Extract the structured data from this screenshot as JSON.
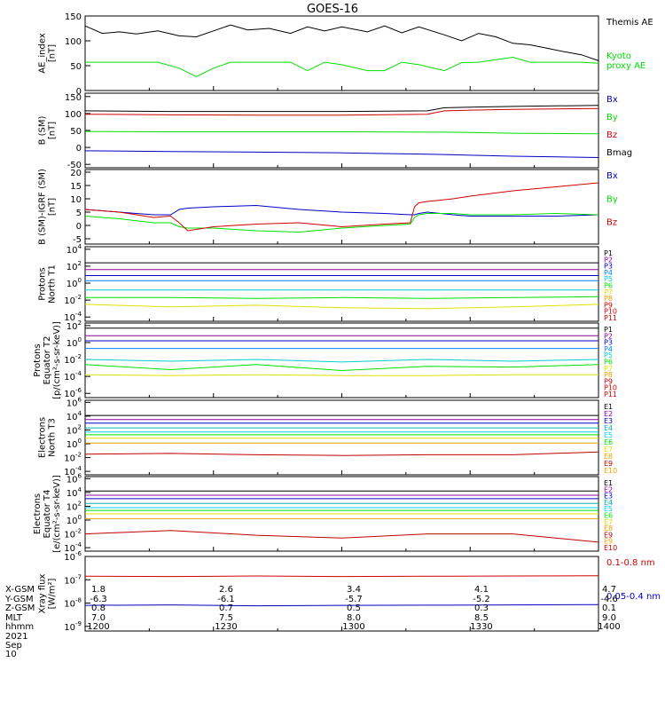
{
  "title": "GOES-16",
  "colors": {
    "black": "#000000",
    "green": "#00e000",
    "blue": "#0000c8",
    "red": "#d00000",
    "cyan": "#00d0d0",
    "orange": "#f0a000",
    "yellow": "#e0e000",
    "purple": "#9000a0",
    "teal": "#00b0b0",
    "lime": "#00e000",
    "darkred": "#c00000"
  },
  "ephemeris": {
    "labels": [
      "X-GSM",
      "Y-GSM",
      "Z-GSM",
      "MLT",
      "hhmm"
    ],
    "columns": [
      [
        "1.8",
        "-6.3",
        "0.8",
        "7.0",
        "1200"
      ],
      [
        "2.6",
        "-6.1",
        "0.7",
        "7.5",
        "1230"
      ],
      [
        "3.4",
        "-5.7",
        "0.5",
        "8.0",
        "1300"
      ],
      [
        "4.1",
        "-5.2",
        "0.3",
        "8.5",
        "1330"
      ],
      [
        "4.7",
        "-4.6",
        "0.1",
        "9.0",
        "1400"
      ]
    ],
    "date": "2021 Sep 10"
  },
  "chart_data": [
    {
      "type": "line",
      "scale": "linear",
      "ylabel": "AE_index\n[nT]",
      "yticks": [
        "150",
        "100",
        "50",
        "0"
      ],
      "ytick_values": [
        150,
        100,
        50,
        0
      ],
      "ylim": [
        0,
        150
      ],
      "x": [
        0,
        4,
        8,
        12,
        17,
        22,
        26,
        30,
        34,
        38,
        43,
        48,
        52,
        56,
        60,
        66,
        70,
        74,
        78,
        84,
        88,
        92,
        96,
        100,
        104,
        108,
        112,
        116,
        120
      ],
      "series": [
        {
          "name": "Themis AE",
          "color": "#000000",
          "values": [
            130,
            115,
            118,
            114,
            120,
            110,
            108,
            120,
            132,
            122,
            125,
            115,
            128,
            120,
            128,
            118,
            130,
            116,
            128,
            112,
            100,
            115,
            108,
            95,
            92,
            85,
            78,
            72,
            60
          ]
        },
        {
          "name": "Kyoto\nproxy AE",
          "color": "#00e000",
          "values": [
            57,
            57,
            57,
            57,
            57,
            45,
            28,
            45,
            57,
            57,
            57,
            57,
            40,
            57,
            52,
            40,
            40,
            57,
            52,
            40,
            56,
            57,
            62,
            67,
            57,
            57,
            57,
            57,
            55
          ]
        }
      ]
    },
    {
      "type": "line",
      "scale": "linear",
      "ylabel": "B (SM)\n[nT]",
      "yticks": [
        "150",
        "100",
        "50",
        "0",
        "-50"
      ],
      "ytick_values": [
        150,
        100,
        50,
        0,
        -50
      ],
      "ylim": [
        -60,
        160
      ],
      "x": [
        0,
        20,
        40,
        60,
        80,
        84,
        90,
        100,
        120
      ],
      "series": [
        {
          "name": "Bx",
          "color": "#0000c8",
          "values": [
            -10,
            -12,
            -14,
            -16,
            -20,
            -21,
            -23,
            -26,
            -30
          ]
        },
        {
          "name": "By",
          "color": "#00e000",
          "values": [
            47,
            46,
            46,
            46,
            45,
            45,
            44,
            42,
            40
          ]
        },
        {
          "name": "Bz",
          "color": "#d00000",
          "values": [
            98,
            96,
            95,
            95,
            98,
            108,
            110,
            112,
            115
          ]
        },
        {
          "name": "Bmag",
          "color": "#000000",
          "values": [
            108,
            106,
            106,
            106,
            108,
            117,
            119,
            121,
            124
          ]
        }
      ]
    },
    {
      "type": "line",
      "scale": "linear",
      "ylabel": "B (SM)-IGRF (SM)\n[nT]",
      "yticks": [
        "20",
        "15",
        "10",
        "5",
        "0",
        "-5"
      ],
      "ytick_values": [
        20,
        15,
        10,
        5,
        0,
        -5
      ],
      "ylim": [
        -7,
        21
      ],
      "x": [
        0,
        8,
        16,
        20,
        22,
        24,
        30,
        40,
        50,
        60,
        70,
        76,
        77,
        78,
        80,
        86,
        90,
        100,
        110,
        120
      ],
      "series": [
        {
          "name": "Bx",
          "color": "#0000c8",
          "values": [
            6,
            5,
            4,
            4,
            6,
            6.5,
            7,
            7.5,
            6,
            5,
            4.5,
            4,
            4,
            4.5,
            5,
            4,
            3.5,
            3.5,
            3.5,
            4
          ]
        },
        {
          "name": "By",
          "color": "#00e000",
          "values": [
            3.5,
            2.5,
            1,
            1,
            -0.5,
            -1,
            -1,
            -2,
            -2.5,
            -1,
            0,
            0.5,
            3,
            4,
            4.5,
            4.5,
            4,
            4,
            4.5,
            4
          ]
        },
        {
          "name": "Bz",
          "color": "#d00000",
          "values": [
            6,
            5,
            3,
            3.5,
            1,
            -2,
            -0.5,
            0.5,
            1,
            -0.5,
            0.5,
            1,
            7,
            8.5,
            9,
            10,
            11,
            13,
            14.5,
            16
          ]
        }
      ]
    },
    {
      "type": "line",
      "scale": "log",
      "ylabel": "Protons\nNorth T1",
      "yticks": [
        "10^4",
        "10^2",
        "10^0",
        "10^-2",
        "10^-4"
      ],
      "ytick_values": [
        4,
        2,
        0,
        -2,
        -4
      ],
      "ylim": [
        -4.5,
        4.3
      ],
      "x": [
        0,
        20,
        40,
        60,
        80,
        100,
        120
      ],
      "series": [
        {
          "name": "P1",
          "color": "#000000",
          "values": [
            2.4,
            2.4,
            2.4,
            2.4,
            2.4,
            2.4,
            2.4
          ]
        },
        {
          "name": "P2",
          "color": "#9000a0",
          "values": [
            1.6,
            1.6,
            1.6,
            1.6,
            1.6,
            1.6,
            1.6
          ]
        },
        {
          "name": "P3",
          "color": "#0000c8",
          "values": [
            0.9,
            0.9,
            0.9,
            0.9,
            0.9,
            0.9,
            0.9
          ]
        },
        {
          "name": "P4",
          "color": "#0080ff",
          "values": [
            0.3,
            0.3,
            0.3,
            0.3,
            0.3,
            0.3,
            0.3
          ]
        },
        {
          "name": "P5",
          "color": "#00d0d0",
          "values": [
            -0.8,
            -0.8,
            -0.8,
            -0.8,
            -0.8,
            -0.8,
            -0.8
          ]
        },
        {
          "name": "P6",
          "color": "#00e000",
          "values": [
            -1.7,
            -1.7,
            -1.8,
            -1.7,
            -1.8,
            -1.7,
            -1.6
          ]
        },
        {
          "name": "P7",
          "color": "#e0e000",
          "values": [
            -2.5,
            -2.8,
            -2.6,
            -2.9,
            -3.0,
            -2.8,
            -2.5
          ]
        }
      ]
    },
    {
      "type": "line",
      "scale": "log",
      "ylabel": "Protons\nEquator T2\n[p/(cm²-s-sr-keV)]",
      "yticks": [
        "10^2",
        "10^0",
        "10^-2",
        "10^-4",
        "10^-6"
      ],
      "ytick_values": [
        2,
        0,
        -2,
        -4,
        -6
      ],
      "ylim": [
        -6.5,
        2.3
      ],
      "x": [
        0,
        20,
        40,
        60,
        80,
        100,
        120
      ],
      "series": [
        {
          "name": "P1",
          "color": "#000000",
          "values": [
            1.7,
            1.7,
            1.7,
            1.7,
            1.7,
            1.7,
            1.7
          ]
        },
        {
          "name": "P2",
          "color": "#9000a0",
          "values": [
            0.8,
            0.8,
            0.8,
            0.8,
            0.8,
            0.8,
            0.8
          ]
        },
        {
          "name": "P3",
          "color": "#0000c8",
          "values": [
            0.2,
            0.2,
            0.2,
            0.2,
            0.2,
            0.2,
            0.2
          ]
        },
        {
          "name": "P4",
          "color": "#0080ff",
          "values": [
            -0.7,
            -0.7,
            -0.7,
            -0.7,
            -0.7,
            -0.7,
            -0.7
          ]
        },
        {
          "name": "P5",
          "color": "#00d0d0",
          "values": [
            -2.0,
            -2.2,
            -2.0,
            -2.3,
            -2.0,
            -2.2,
            -2.0
          ]
        },
        {
          "name": "P6",
          "color": "#00e000",
          "values": [
            -2.6,
            -3.2,
            -2.6,
            -3.3,
            -2.8,
            -2.9,
            -2.6
          ]
        },
        {
          "name": "P7",
          "color": "#e0e000",
          "values": [
            -3.8,
            -3.9,
            -3.8,
            -3.9,
            -3.9,
            -3.8,
            -3.8
          ]
        }
      ]
    },
    {
      "type": "line",
      "scale": "log",
      "ylabel": "Electrons\nNorth T3",
      "yticks": [
        "10^6",
        "10^4",
        "10^2",
        "10^0",
        "10^-2",
        "10^-4"
      ],
      "ytick_values": [
        6,
        4,
        2,
        0,
        -2,
        -4
      ],
      "ylim": [
        -4.5,
        6.3
      ],
      "x": [
        0,
        20,
        40,
        60,
        80,
        100,
        120
      ],
      "series": [
        {
          "name": "E1",
          "color": "#000000",
          "values": [
            4.1,
            4.1,
            4.1,
            4.1,
            4.1,
            4.1,
            4.1
          ]
        },
        {
          "name": "E2",
          "color": "#9000a0",
          "values": [
            3.5,
            3.5,
            3.5,
            3.5,
            3.5,
            3.5,
            3.5
          ]
        },
        {
          "name": "E3",
          "color": "#0000c8",
          "values": [
            3.0,
            3.0,
            3.0,
            3.0,
            3.0,
            3.0,
            3.0
          ]
        },
        {
          "name": "E4",
          "color": "#00b0b0",
          "values": [
            2.3,
            2.3,
            2.3,
            2.3,
            2.3,
            2.3,
            2.3
          ]
        },
        {
          "name": "E5",
          "color": "#00d0ff",
          "values": [
            1.7,
            1.7,
            1.7,
            1.7,
            1.7,
            1.7,
            1.7
          ]
        },
        {
          "name": "E6",
          "color": "#00e000",
          "values": [
            1.3,
            1.3,
            1.3,
            1.3,
            1.3,
            1.3,
            1.3
          ]
        },
        {
          "name": "E7",
          "color": "#e0e000",
          "values": [
            0.8,
            0.8,
            0.8,
            0.8,
            0.8,
            0.8,
            0.8
          ]
        },
        {
          "name": "E8",
          "color": "#f0a000",
          "values": [
            0.1,
            0.1,
            0.1,
            0.1,
            0.1,
            0.1,
            0.1
          ]
        },
        {
          "name": "E9",
          "color": "#c00000",
          "values": [
            -1.5,
            -1.4,
            -1.6,
            -1.7,
            -1.6,
            -1.6,
            -1.2
          ]
        }
      ]
    },
    {
      "type": "line",
      "scale": "log",
      "ylabel": "Electrons\nEquator T4\n[e/(cm²-s-sr-keV)]",
      "yticks": [
        "10^6",
        "10^4",
        "10^2",
        "10^0",
        "10^-2",
        "10^-4"
      ],
      "ytick_values": [
        6,
        4,
        2,
        0,
        -2,
        -4
      ],
      "ylim": [
        -4.5,
        6.3
      ],
      "x": [
        0,
        20,
        40,
        60,
        80,
        100,
        120
      ],
      "series": [
        {
          "name": "E1",
          "color": "#000000",
          "values": [
            4.2,
            4.2,
            4.2,
            4.2,
            4.2,
            4.2,
            4.2
          ]
        },
        {
          "name": "E2",
          "color": "#9000a0",
          "values": [
            3.6,
            3.6,
            3.6,
            3.6,
            3.6,
            3.6,
            3.6
          ]
        },
        {
          "name": "E3",
          "color": "#0000c8",
          "values": [
            3.1,
            3.1,
            3.1,
            3.1,
            3.1,
            3.1,
            3.1
          ]
        },
        {
          "name": "E4",
          "color": "#00b0b0",
          "values": [
            2.4,
            2.4,
            2.4,
            2.4,
            2.4,
            2.4,
            2.4
          ]
        },
        {
          "name": "E5",
          "color": "#00d0ff",
          "values": [
            1.8,
            1.8,
            1.8,
            1.8,
            1.8,
            1.8,
            1.8
          ]
        },
        {
          "name": "E6",
          "color": "#00e000",
          "values": [
            1.4,
            1.4,
            1.4,
            1.4,
            1.4,
            1.4,
            1.4
          ]
        },
        {
          "name": "E7",
          "color": "#e0e000",
          "values": [
            0.9,
            0.9,
            0.9,
            0.9,
            0.9,
            0.9,
            0.9
          ]
        },
        {
          "name": "E8",
          "color": "#f0a000",
          "values": [
            0.2,
            0.2,
            0.2,
            0.2,
            0.2,
            0.2,
            0.2
          ]
        },
        {
          "name": "E9",
          "color": "#c00000",
          "values": [
            -2.0,
            -1.5,
            -2.2,
            -2.6,
            -2.0,
            -2.0,
            -3.2
          ]
        }
      ]
    },
    {
      "type": "line",
      "scale": "log",
      "ylabel": "Xray flux\n[W/m²]",
      "yticks": [
        "10^-6",
        "10^-7",
        "10^-8",
        "10^-9"
      ],
      "ytick_values": [
        -6,
        -7,
        -8,
        -9
      ],
      "ylim": [
        -9.2,
        -6.0
      ],
      "x": [
        0,
        20,
        40,
        60,
        80,
        100,
        120
      ],
      "series": [
        {
          "name": "0.1-0.8 nm",
          "color": "#d00000",
          "values": [
            -6.85,
            -6.86,
            -6.84,
            -6.86,
            -6.85,
            -6.84,
            -6.83
          ]
        },
        {
          "name": "0.05-0.4 nm",
          "color": "#0000c8",
          "values": [
            -8.1,
            -8.08,
            -8.12,
            -8.1,
            -8.09,
            -8.08,
            -8.07
          ]
        }
      ]
    }
  ],
  "extra_labels": {
    "t1": [
      "P8",
      "P9",
      "P10",
      "P11"
    ],
    "t2": [
      "P8",
      "P9",
      "P10",
      "P11"
    ],
    "t3": [
      "E10"
    ],
    "t4": [
      "E9",
      "E10"
    ]
  }
}
